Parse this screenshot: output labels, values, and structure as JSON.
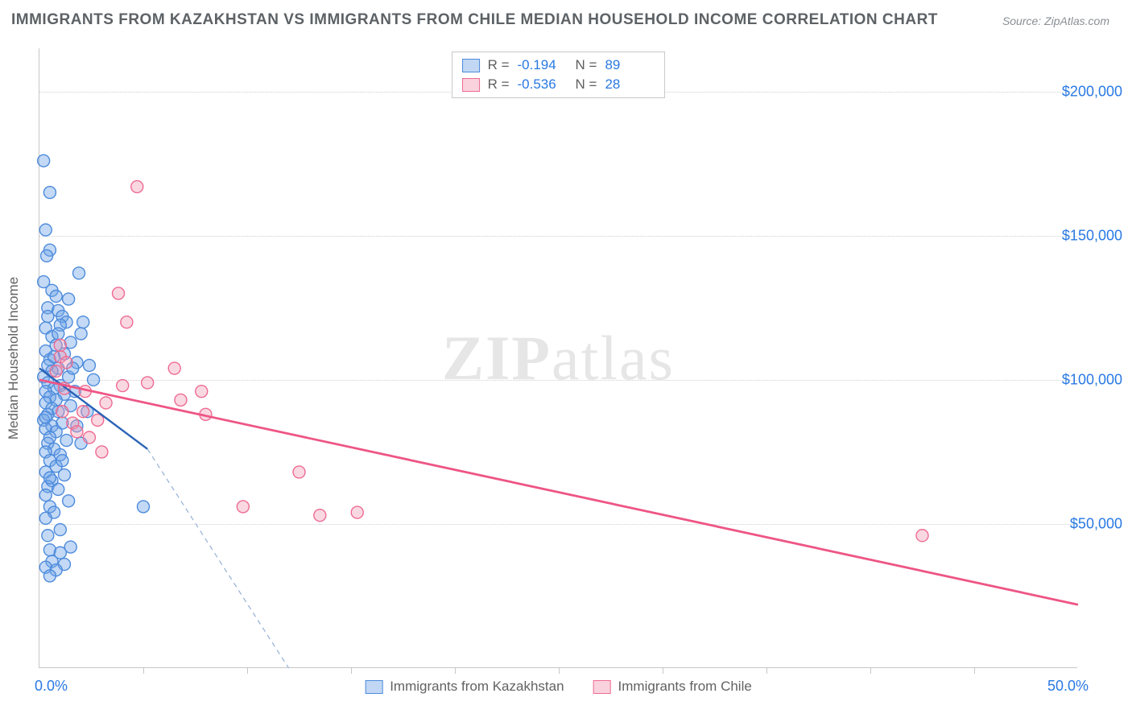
{
  "title": "IMMIGRANTS FROM KAZAKHSTAN VS IMMIGRANTS FROM CHILE MEDIAN HOUSEHOLD INCOME CORRELATION CHART",
  "source": "Source: ZipAtlas.com",
  "watermark_a": "ZIP",
  "watermark_b": "atlas",
  "y_axis_title": "Median Household Income",
  "chart": {
    "type": "scatter",
    "background_color": "#ffffff",
    "grid_color": "#d0d0d0",
    "axis_color": "#c7c7c7",
    "xlim": [
      0,
      50
    ],
    "ylim": [
      0,
      215000
    ],
    "x_tick_positions": [
      5,
      10,
      15,
      20,
      25,
      30,
      35,
      40,
      45
    ],
    "y_ticks": [
      {
        "v": 50000,
        "label": "$50,000"
      },
      {
        "v": 100000,
        "label": "$100,000"
      },
      {
        "v": 150000,
        "label": "$150,000"
      },
      {
        "v": 200000,
        "label": "$200,000"
      }
    ],
    "x_min_label": "0.0%",
    "x_max_label": "50.0%",
    "y_label_color": "#2979e2",
    "y_label_fontsize": 18,
    "marker_radius": 7.5,
    "marker_stroke_width": 1.4,
    "series": [
      {
        "name": "Immigrants from Kazakhstan",
        "color_fill": "rgba(111,165,230,0.42)",
        "color_stroke": "#4d8bdc",
        "R": "-0.194",
        "N": "89",
        "trend": {
          "x1": 0,
          "y1": 104000,
          "x2": 5.2,
          "y2": 76000,
          "width": 2.4,
          "color": "#2b63b6"
        },
        "trend_ext": {
          "x1": 5.2,
          "y1": 76000,
          "x2": 12.0,
          "y2": 0,
          "color": "#9bb6d8"
        },
        "points": [
          [
            0.2,
            176000
          ],
          [
            0.5,
            165000
          ],
          [
            0.3,
            152000
          ],
          [
            0.5,
            145000
          ],
          [
            0.35,
            143000
          ],
          [
            0.2,
            134000
          ],
          [
            0.6,
            131000
          ],
          [
            0.8,
            129000
          ],
          [
            0.4,
            125000
          ],
          [
            0.9,
            124000
          ],
          [
            1.1,
            122000
          ],
          [
            1.3,
            120000
          ],
          [
            1.0,
            119000
          ],
          [
            0.3,
            118000
          ],
          [
            2.0,
            116000
          ],
          [
            0.6,
            115000
          ],
          [
            1.5,
            113000
          ],
          [
            0.8,
            112000
          ],
          [
            0.3,
            110000
          ],
          [
            1.2,
            109000
          ],
          [
            0.5,
            107000
          ],
          [
            1.8,
            106000
          ],
          [
            0.4,
            105000
          ],
          [
            2.4,
            105000
          ],
          [
            0.9,
            104000
          ],
          [
            0.6,
            103000
          ],
          [
            0.2,
            101000
          ],
          [
            1.4,
            101000
          ],
          [
            0.4,
            99000
          ],
          [
            1.0,
            98000
          ],
          [
            0.7,
            97000
          ],
          [
            0.3,
            96000
          ],
          [
            1.2,
            95000
          ],
          [
            0.5,
            94000
          ],
          [
            0.8,
            93000
          ],
          [
            0.3,
            92000
          ],
          [
            1.5,
            91000
          ],
          [
            0.6,
            90000
          ],
          [
            0.9,
            89000
          ],
          [
            0.4,
            88000
          ],
          [
            0.2,
            86000
          ],
          [
            1.1,
            85000
          ],
          [
            0.6,
            84000
          ],
          [
            0.3,
            83000
          ],
          [
            0.8,
            82000
          ],
          [
            0.5,
            80000
          ],
          [
            1.3,
            79000
          ],
          [
            0.4,
            78000
          ],
          [
            0.7,
            76000
          ],
          [
            0.3,
            75000
          ],
          [
            1.0,
            74000
          ],
          [
            0.5,
            72000
          ],
          [
            0.8,
            70000
          ],
          [
            0.3,
            68000
          ],
          [
            1.2,
            67000
          ],
          [
            0.6,
            65000
          ],
          [
            0.4,
            63000
          ],
          [
            0.9,
            62000
          ],
          [
            0.3,
            60000
          ],
          [
            1.4,
            58000
          ],
          [
            0.5,
            56000
          ],
          [
            0.7,
            54000
          ],
          [
            5.0,
            56000
          ],
          [
            0.3,
            52000
          ],
          [
            1.0,
            48000
          ],
          [
            0.4,
            46000
          ],
          [
            1.5,
            42000
          ],
          [
            0.5,
            41000
          ],
          [
            1.0,
            40000
          ],
          [
            0.6,
            37000
          ],
          [
            1.2,
            36000
          ],
          [
            0.3,
            35000
          ],
          [
            0.8,
            34000
          ],
          [
            0.5,
            32000
          ],
          [
            0.3,
            87000
          ],
          [
            2.1,
            120000
          ],
          [
            1.7,
            96000
          ],
          [
            2.3,
            89000
          ],
          [
            1.9,
            137000
          ],
          [
            2.6,
            100000
          ],
          [
            1.4,
            128000
          ],
          [
            0.9,
            116000
          ],
          [
            1.6,
            104000
          ],
          [
            2.0,
            78000
          ],
          [
            0.7,
            108000
          ],
          [
            1.1,
            72000
          ],
          [
            0.4,
            122000
          ],
          [
            1.8,
            84000
          ],
          [
            0.5,
            66000
          ]
        ]
      },
      {
        "name": "Immigrants from Chile",
        "color_fill": "rgba(243,152,179,0.38)",
        "color_stroke": "#ee6b92",
        "R": "-0.536",
        "N": "28",
        "trend": {
          "x1": 0,
          "y1": 100000,
          "x2": 50,
          "y2": 22000,
          "width": 2.8,
          "color": "#ee5585"
        },
        "points": [
          [
            4.7,
            167000
          ],
          [
            3.8,
            130000
          ],
          [
            4.2,
            120000
          ],
          [
            1.0,
            108000
          ],
          [
            1.3,
            106000
          ],
          [
            0.8,
            103000
          ],
          [
            6.5,
            104000
          ],
          [
            5.2,
            99000
          ],
          [
            4.0,
            98000
          ],
          [
            1.2,
            97000
          ],
          [
            2.2,
            96000
          ],
          [
            7.8,
            96000
          ],
          [
            6.8,
            93000
          ],
          [
            3.2,
            92000
          ],
          [
            1.1,
            89000
          ],
          [
            2.1,
            89000
          ],
          [
            8.0,
            88000
          ],
          [
            1.6,
            85000
          ],
          [
            2.8,
            86000
          ],
          [
            1.8,
            82000
          ],
          [
            2.4,
            80000
          ],
          [
            3.0,
            75000
          ],
          [
            12.5,
            68000
          ],
          [
            9.8,
            56000
          ],
          [
            15.3,
            54000
          ],
          [
            13.5,
            53000
          ],
          [
            42.5,
            46000
          ],
          [
            1.0,
            112000
          ]
        ]
      }
    ]
  },
  "legend_bottom": [
    {
      "swatch": "blue",
      "label": "Immigrants from Kazakhstan"
    },
    {
      "swatch": "pink",
      "label": "Immigrants from Chile"
    }
  ]
}
